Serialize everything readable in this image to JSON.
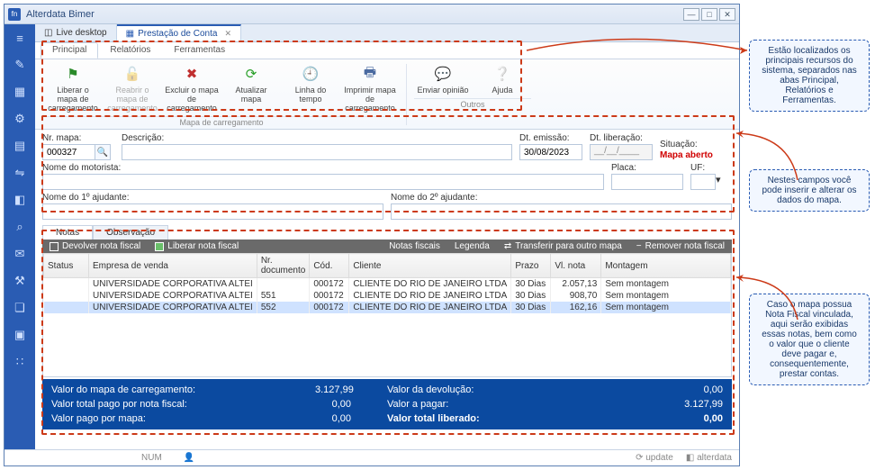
{
  "window": {
    "title": "Alterdata Bimer"
  },
  "top_tabs": [
    {
      "label": "Live desktop",
      "active": false
    },
    {
      "label": "Prestação de Conta",
      "active": true
    }
  ],
  "ribbon_tabs": [
    {
      "label": "Principal",
      "active": true
    },
    {
      "label": "Relatórios",
      "active": false
    },
    {
      "label": "Ferramentas",
      "active": false
    }
  ],
  "ribbon": {
    "group1_label": "Mapa de carregamento",
    "group2_label": "Outros",
    "buttons": [
      {
        "label": "Liberar o mapa de carregamento",
        "icon": "⚑",
        "color": "#2a8a2a"
      },
      {
        "label": "Reabrir o mapa de carregamento",
        "icon": "🔓",
        "color": "#aaa",
        "disabled": true
      },
      {
        "label": "Excluir o mapa de carregamento",
        "icon": "✖",
        "color": "#c03030"
      },
      {
        "label": "Atualizar mapa",
        "icon": "⟳",
        "color": "#2aa02a"
      },
      {
        "label": "Linha do tempo",
        "icon": "🕘",
        "color": "#e0a020"
      },
      {
        "label": "Imprimir mapa de carregamento",
        "icon": "🖶",
        "color": "#4a6aa0"
      },
      {
        "label": "Enviar opinião",
        "icon": "💬",
        "color": "#2a6ad0"
      },
      {
        "label": "Ajuda",
        "icon": "❔",
        "color": "#2a6ad0"
      }
    ]
  },
  "form": {
    "nr_mapa_label": "Nr. mapa:",
    "nr_mapa": "000327",
    "descricao_label": "Descrição:",
    "descricao": "",
    "dt_emissao_label": "Dt. emissão:",
    "dt_emissao": "30/08/2023",
    "dt_liberacao_label": "Dt. liberação:",
    "dt_liberacao": "__/__/____",
    "situacao_label": "Situação:",
    "situacao": "Mapa aberto",
    "motorista_label": "Nome do motorista:",
    "motorista": "",
    "placa_label": "Placa:",
    "placa": "",
    "uf_label": "UF:",
    "uf": "",
    "aj1_label": "Nome do 1º ajudante:",
    "aj1": "",
    "aj2_label": "Nome do 2º ajudante:",
    "aj2": ""
  },
  "sub_tabs": [
    {
      "label": "Notas",
      "active": true
    },
    {
      "label": "Observação",
      "active": false
    }
  ],
  "grid_toolbar": {
    "devolver": "Devolver nota fiscal",
    "liberar": "Liberar nota fiscal",
    "notas": "Notas fiscais",
    "legenda": "Legenda",
    "transferir": "Transferir para outro mapa",
    "remover": "Remover nota fiscal"
  },
  "grid": {
    "columns": [
      "Status",
      "Empresa de venda",
      "Nr. documento",
      "Cód.",
      "Cliente",
      "Prazo",
      "Vl. nota",
      "Montagem"
    ],
    "rows": [
      [
        "",
        "UNIVERSIDADE CORPORATIVA ALTEI",
        "",
        "000172",
        "CLIENTE DO RIO DE JANEIRO LTDA",
        "30 Dias",
        "2.057,13",
        "Sem montagem"
      ],
      [
        "",
        "UNIVERSIDADE CORPORATIVA ALTEI",
        "551",
        "000172",
        "CLIENTE DO RIO DE JANEIRO LTDA",
        "30 Dias",
        "908,70",
        "Sem montagem"
      ],
      [
        "",
        "UNIVERSIDADE CORPORATIVA ALTEI",
        "552",
        "000172",
        "CLIENTE DO RIO DE JANEIRO LTDA",
        "30 Dias",
        "162,16",
        "Sem montagem"
      ]
    ],
    "selected_row": 2
  },
  "totals": {
    "l1a": "Valor do mapa de carregamento:",
    "v1a": "3.127,99",
    "l1b": "Valor da devolução:",
    "v1b": "0,00",
    "l2a": "Valor total pago por nota fiscal:",
    "v2a": "0,00",
    "l2b": "Valor a pagar:",
    "v2b": "3.127,99",
    "l3a": "Valor pago por mapa:",
    "v3a": "0,00",
    "l3b": "Valor total liberado:",
    "v3b": "0,00"
  },
  "status": {
    "num": "NUM",
    "update": "update",
    "brand": "alterdata"
  },
  "callouts": {
    "c1": "Estão localizados os principais recursos do sistema, separados nas abas Principal, Relatórios e Ferramentas.",
    "c2": "Nestes campos você pode inserir e alterar os dados do mapa.",
    "c3": "Caso o mapa possua Nota Fiscal vinculada, aqui serão exibidas essas notas, bem como o valor que o cliente deve pagar e, consequentemente, prestar contas."
  },
  "leftbar_icons": [
    "≡",
    "✎",
    "▦",
    "⚙",
    "▤",
    "⇋",
    "◧",
    "⌕",
    "✉",
    "⚒",
    "❏",
    "▣",
    "∷"
  ]
}
